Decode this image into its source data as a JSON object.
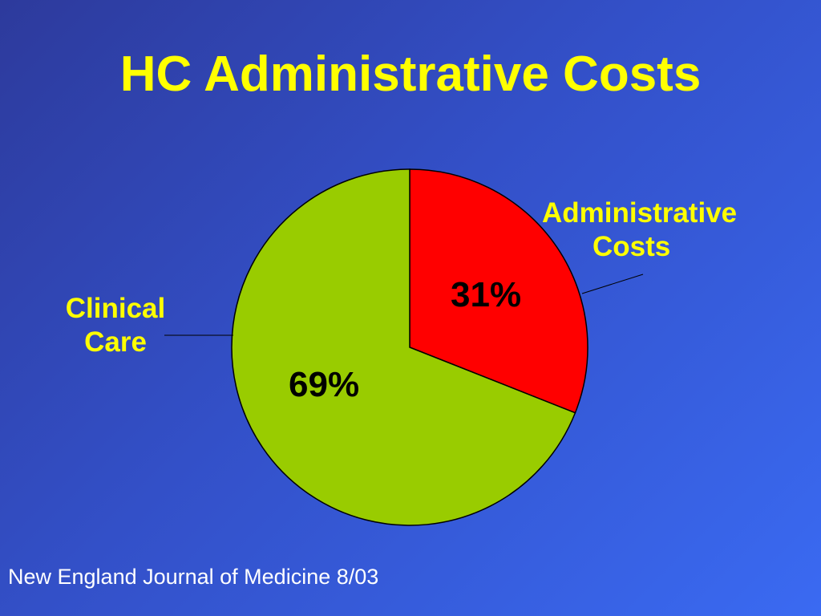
{
  "slide": {
    "title": "HC Administrative Costs",
    "source": "New England Journal of Medicine 8/03"
  },
  "chart_data": {
    "type": "pie",
    "slices": [
      {
        "label_line1": "Administrative",
        "label_line2": "Costs",
        "value": 31,
        "value_label": "31%",
        "color": "#ff0000"
      },
      {
        "label_line1": "Clinical",
        "label_line2": "Care",
        "value": 69,
        "value_label": "69%",
        "color": "#99cc00"
      }
    ]
  }
}
